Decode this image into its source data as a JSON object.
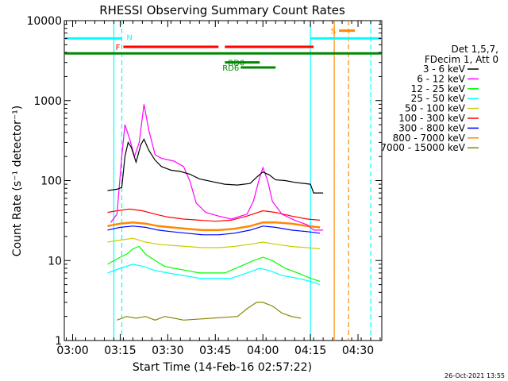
{
  "chart_data": {
    "type": "line",
    "title": "RHESSI Observing Summary Count Rates",
    "xlabel": "Start Time (14-Feb-16 02:57:22)",
    "ylabel": "Count Rate (s⁻¹ detector⁻¹)",
    "y_scale": "log",
    "ylim": [
      1,
      10000
    ],
    "xlim": [
      "02:57:22",
      "04:37:30"
    ],
    "x_tick_labels": [
      "03:00",
      "03:15",
      "03:30",
      "03:45",
      "04:00",
      "04:15",
      "04:30"
    ],
    "y_tick_labels": [
      "1",
      "10",
      "100",
      "1000",
      "10000"
    ],
    "grid": false,
    "legend_placement": "right",
    "legend_header": [
      "Det 1,5,7,",
      "FDecim 1, Att 0"
    ],
    "footer_date": "26-Oct-2021 13:55",
    "series": [
      {
        "name": "3 - 6 keV",
        "color": "#000000",
        "points": [
          [
            "03:11:00",
            75
          ],
          [
            "03:14:00",
            78
          ],
          [
            "03:15:30",
            82
          ],
          [
            "03:16:30",
            200
          ],
          [
            "03:17:30",
            300
          ],
          [
            "03:18:30",
            260
          ],
          [
            "03:20:00",
            170
          ],
          [
            "03:21:30",
            280
          ],
          [
            "03:22:30",
            330
          ],
          [
            "03:24:00",
            240
          ],
          [
            "03:26:00",
            180
          ],
          [
            "03:28:00",
            150
          ],
          [
            "03:31:00",
            135
          ],
          [
            "03:34:00",
            130
          ],
          [
            "03:37:00",
            120
          ],
          [
            "03:40:00",
            105
          ],
          [
            "03:44:00",
            97
          ],
          [
            "03:48:00",
            90
          ],
          [
            "03:52:00",
            88
          ],
          [
            "03:56:00",
            92
          ],
          [
            "03:58:00",
            110
          ],
          [
            "04:00:00",
            128
          ],
          [
            "04:02:00",
            118
          ],
          [
            "04:04:00",
            102
          ],
          [
            "04:07:00",
            100
          ],
          [
            "04:10:00",
            95
          ],
          [
            "04:13:00",
            92
          ],
          [
            "04:15:00",
            90
          ],
          [
            "04:16:00",
            70
          ],
          [
            "04:19:00",
            70
          ]
        ]
      },
      {
        "name": "6 - 12 keV",
        "color": "#ff00ff",
        "points": [
          [
            "03:12:00",
            30
          ],
          [
            "03:14:00",
            38
          ],
          [
            "03:15:30",
            200
          ],
          [
            "03:16:30",
            500
          ],
          [
            "03:18:00",
            330
          ],
          [
            "03:19:30",
            200
          ],
          [
            "03:21:00",
            300
          ],
          [
            "03:22:30",
            900
          ],
          [
            "03:24:00",
            430
          ],
          [
            "03:26:00",
            210
          ],
          [
            "03:28:00",
            190
          ],
          [
            "03:32:00",
            175
          ],
          [
            "03:35:00",
            150
          ],
          [
            "03:37:00",
            98
          ],
          [
            "03:39:00",
            52
          ],
          [
            "03:42:00",
            40
          ],
          [
            "03:46:00",
            36
          ],
          [
            "03:50:00",
            33
          ],
          [
            "03:55:00",
            38
          ],
          [
            "03:57:00",
            55
          ],
          [
            "03:59:00",
            110
          ],
          [
            "04:00:00",
            145
          ],
          [
            "04:01:30",
            100
          ],
          [
            "04:03:00",
            55
          ],
          [
            "04:06:00",
            38
          ],
          [
            "04:10:00",
            32
          ],
          [
            "04:14:00",
            28
          ],
          [
            "04:16:00",
            24
          ],
          [
            "04:19:00",
            24
          ]
        ]
      },
      {
        "name": "12 - 25 keV",
        "color": "#00ff00",
        "points": [
          [
            "03:11:00",
            9
          ],
          [
            "03:15:00",
            11
          ],
          [
            "03:17:00",
            12
          ],
          [
            "03:19:00",
            14
          ],
          [
            "03:21:00",
            15
          ],
          [
            "03:23:00",
            12
          ],
          [
            "03:26:00",
            10
          ],
          [
            "03:29:00",
            8.5
          ],
          [
            "03:32:00",
            8
          ],
          [
            "03:36:00",
            7.5
          ],
          [
            "03:40:00",
            7
          ],
          [
            "03:44:00",
            7
          ],
          [
            "03:48:00",
            7
          ],
          [
            "03:53:00",
            8.5
          ],
          [
            "03:57:00",
            10
          ],
          [
            "04:00:00",
            11
          ],
          [
            "04:03:00",
            10
          ],
          [
            "04:07:00",
            8
          ],
          [
            "04:11:00",
            7
          ],
          [
            "04:15:00",
            6
          ],
          [
            "04:18:00",
            5.5
          ]
        ]
      },
      {
        "name": "25 - 50 keV",
        "color": "#00ffff",
        "points": [
          [
            "03:11:00",
            7
          ],
          [
            "03:15:00",
            8
          ],
          [
            "03:19:00",
            9
          ],
          [
            "03:22:00",
            8.5
          ],
          [
            "03:26:00",
            7.5
          ],
          [
            "03:30:00",
            7
          ],
          [
            "03:35:00",
            6.5
          ],
          [
            "03:40:00",
            6
          ],
          [
            "03:45:00",
            6
          ],
          [
            "03:50:00",
            6
          ],
          [
            "03:55:00",
            7
          ],
          [
            "03:59:00",
            8
          ],
          [
            "04:02:00",
            7.5
          ],
          [
            "04:06:00",
            6.5
          ],
          [
            "04:11:00",
            6
          ],
          [
            "04:15:00",
            5.5
          ],
          [
            "04:18:00",
            5
          ]
        ]
      },
      {
        "name": "50 - 100 keV",
        "color": "#cccc00",
        "points": [
          [
            "03:11:00",
            17
          ],
          [
            "03:15:00",
            18
          ],
          [
            "03:19:00",
            19
          ],
          [
            "03:23:00",
            17
          ],
          [
            "03:27:00",
            16
          ],
          [
            "03:31:00",
            15.5
          ],
          [
            "03:36:00",
            15
          ],
          [
            "03:41:00",
            14.5
          ],
          [
            "03:46:00",
            14.5
          ],
          [
            "03:51:00",
            15
          ],
          [
            "03:56:00",
            16
          ],
          [
            "04:00:00",
            17
          ],
          [
            "04:04:00",
            16
          ],
          [
            "04:09:00",
            15
          ],
          [
            "04:14:00",
            14.5
          ],
          [
            "04:18:00",
            14
          ]
        ]
      },
      {
        "name": "100 - 300 keV",
        "color": "#ff0000",
        "points": [
          [
            "03:11:00",
            40
          ],
          [
            "03:14:00",
            42
          ],
          [
            "03:18:00",
            44
          ],
          [
            "03:22:00",
            42
          ],
          [
            "03:26:00",
            38
          ],
          [
            "03:30:00",
            35
          ],
          [
            "03:35:00",
            33
          ],
          [
            "03:40:00",
            32
          ],
          [
            "03:45:00",
            31
          ],
          [
            "03:50:00",
            32
          ],
          [
            "03:55:00",
            36
          ],
          [
            "04:00:00",
            42
          ],
          [
            "04:04:00",
            40
          ],
          [
            "04:09:00",
            36
          ],
          [
            "04:14:00",
            33
          ],
          [
            "04:18:00",
            32
          ]
        ]
      },
      {
        "name": "300 - 800 keV",
        "color": "#0000ff",
        "points": [
          [
            "03:11:00",
            24
          ],
          [
            "03:15:00",
            26
          ],
          [
            "03:19:00",
            27
          ],
          [
            "03:23:00",
            26
          ],
          [
            "03:27:00",
            24
          ],
          [
            "03:31:00",
            23
          ],
          [
            "03:36:00",
            22
          ],
          [
            "03:41:00",
            21
          ],
          [
            "03:46:00",
            21
          ],
          [
            "03:51:00",
            22
          ],
          [
            "03:56:00",
            24
          ],
          [
            "04:00:00",
            27
          ],
          [
            "04:04:00",
            26
          ],
          [
            "04:09:00",
            24
          ],
          [
            "04:14:00",
            23
          ],
          [
            "04:18:00",
            22
          ]
        ]
      },
      {
        "name": "800 - 7000 keV",
        "color": "#ff8800",
        "points": [
          [
            "03:11:00",
            27
          ],
          [
            "03:15:00",
            29
          ],
          [
            "03:19:00",
            30
          ],
          [
            "03:23:00",
            29
          ],
          [
            "03:27:00",
            27
          ],
          [
            "03:31:00",
            26
          ],
          [
            "03:36:00",
            25
          ],
          [
            "03:41:00",
            24
          ],
          [
            "03:46:00",
            24
          ],
          [
            "03:51:00",
            25
          ],
          [
            "03:56:00",
            27
          ],
          [
            "04:00:00",
            30
          ],
          [
            "04:04:00",
            30
          ],
          [
            "04:09:00",
            29
          ],
          [
            "04:14:00",
            27
          ],
          [
            "04:18:00",
            26
          ]
        ]
      },
      {
        "name": "7000 - 15000 keV",
        "color": "#888800",
        "points": [
          [
            "03:14:00",
            1.8
          ],
          [
            "03:17:00",
            2
          ],
          [
            "03:20:00",
            1.9
          ],
          [
            "03:23:00",
            2
          ],
          [
            "03:26:00",
            1.8
          ],
          [
            "03:29:00",
            2
          ],
          [
            "03:32:00",
            1.9
          ],
          [
            "03:35:00",
            1.8
          ],
          [
            "03:52:00",
            2
          ],
          [
            "03:55:00",
            2.5
          ],
          [
            "03:58:00",
            3
          ],
          [
            "04:00:00",
            3
          ],
          [
            "04:03:00",
            2.7
          ],
          [
            "04:06:00",
            2.2
          ],
          [
            "04:09:00",
            2
          ],
          [
            "04:12:00",
            1.9
          ]
        ]
      }
    ],
    "state_bars": [
      {
        "label": "N",
        "color": "#00ffff",
        "level": 6000,
        "segments": [
          [
            "02:57:22",
            "03:15:30"
          ],
          [
            "04:15:00",
            "04:37:30"
          ]
        ]
      },
      {
        "label": "F",
        "color": "#ff0000",
        "level": 4700,
        "segments": [
          [
            "03:16:00",
            "03:46:00"
          ],
          [
            "03:48:00",
            "04:16:00"
          ]
        ]
      },
      {
        "label": "",
        "color": "#008800",
        "level": 3900,
        "segments": [
          [
            "02:57:22",
            "04:37:30"
          ]
        ]
      },
      {
        "label": "RD0",
        "color": "#008800",
        "level": 3000,
        "segments": [
          [
            "03:48:00",
            "03:59:00"
          ]
        ]
      },
      {
        "label": "RD6",
        "color": "#008800",
        "level": 2600,
        "segments": [
          [
            "03:53:00",
            "04:04:00"
          ]
        ]
      },
      {
        "label": "S",
        "color": "#ff8800",
        "level": 7500,
        "segments": [
          [
            "04:24:00",
            "04:29:00"
          ]
        ]
      }
    ],
    "vertical_markers": [
      {
        "time": "03:13:00",
        "color": "#00ffff",
        "style": "solid"
      },
      {
        "time": "03:15:30",
        "color": "#00ffff",
        "style": "dashed"
      },
      {
        "time": "04:15:00",
        "color": "#00ffff",
        "style": "solid"
      },
      {
        "time": "04:22:30",
        "color": "#ff8800",
        "style": "solid"
      },
      {
        "time": "04:27:00",
        "color": "#ff8800",
        "style": "dashed"
      },
      {
        "time": "04:34:00",
        "color": "#00ffff",
        "style": "dashed"
      }
    ]
  }
}
